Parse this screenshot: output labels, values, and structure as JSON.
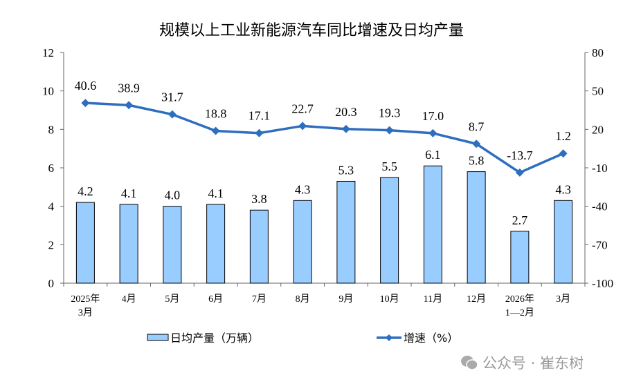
{
  "chart_data": {
    "type": "bar+line",
    "title": "规模以上工业新能源汽车同比增速及日均产量",
    "categories": [
      "2025年\n3月",
      "4月",
      "5月",
      "6月",
      "7月",
      "8月",
      "9月",
      "10月",
      "11月",
      "12月",
      "2026年\n1—2月",
      "3月"
    ],
    "series": [
      {
        "name": "日均产量（万辆）",
        "type": "bar",
        "axis": "left",
        "color": "#99CCFF",
        "values": [
          4.2,
          4.1,
          4.0,
          4.1,
          3.8,
          4.3,
          5.3,
          5.5,
          6.1,
          5.8,
          2.7,
          4.3
        ]
      },
      {
        "name": "增速（%）",
        "type": "line",
        "axis": "right",
        "color": "#2E6EBF",
        "values": [
          40.6,
          38.9,
          31.7,
          18.8,
          17.1,
          22.7,
          20.3,
          19.3,
          17.0,
          8.7,
          -13.7,
          1.2
        ]
      }
    ],
    "left_axis": {
      "range": [
        0,
        12
      ],
      "ticks": [
        0,
        2,
        4,
        6,
        8,
        10,
        12
      ]
    },
    "right_axis": {
      "range": [
        -100,
        80
      ],
      "ticks": [
        -100,
        -70,
        -40,
        -10,
        20,
        50,
        80
      ]
    },
    "grid": false,
    "legend_placement": "bottom"
  },
  "watermark": {
    "text": "公众号 · 崔东树",
    "icon": "wechat-icon"
  }
}
